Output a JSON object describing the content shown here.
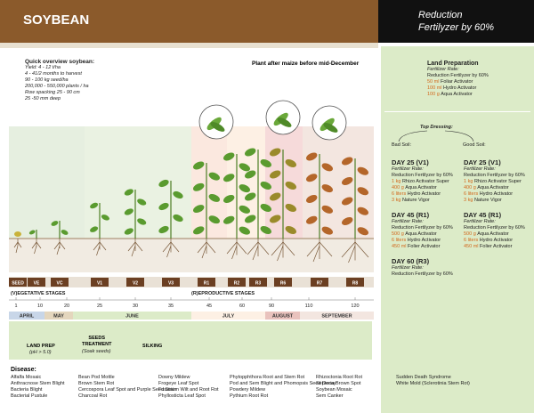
{
  "header": {
    "title": "SOYBEAN",
    "right_title": [
      "Reduction",
      "Fertilyzer by 60%"
    ]
  },
  "overview": {
    "heading": "Quick overview soybean:",
    "items": [
      "Yield: 4 - 12 t/ha",
      "4 - 41/2 months to harvest",
      "90 - 100 kg seed/ha",
      "200,000 - 550,000 plants / ha",
      "Row spacking 25 - 90 cm",
      "25 -50 mm deep"
    ]
  },
  "plant_note": "Plant after maize before mid-December",
  "land_preparation": {
    "title": "Land Preparation",
    "rate_label": "Fertilizer Rate:",
    "reduction": "Reduction Fertilyzer by 60%",
    "lines": [
      {
        "amount": "50 ml",
        "product": "Foliar Activator"
      },
      {
        "amount": "100 ml",
        "product": "Hydro Activator"
      },
      {
        "amount": "100 g",
        "product": "Aqua Activator"
      }
    ]
  },
  "top_dressing": {
    "title": "Top Dressing:",
    "bad_label": "Bad Soil:",
    "good_label": "Good Soil:",
    "bad": [
      {
        "day": "DAY 25 (V1)",
        "rate_label": "Fertilizer Rate:",
        "reduction": "Reduction Fertilyzer by 60%",
        "lines": [
          {
            "amount": "1 kg",
            "product": "Rhizo Activator Super"
          },
          {
            "amount": "400 g",
            "product": "Aqua Activator"
          },
          {
            "amount": "6 liters",
            "product": "Hydro Activator"
          },
          {
            "amount": "3 kg",
            "product": "Nature Vigor"
          }
        ]
      },
      {
        "day": "DAY 45 (R1)",
        "rate_label": "Fertilizer Rate:",
        "reduction": "Reduction Fertilyzer by 60%",
        "lines": [
          {
            "amount": "500 g",
            "product": "Aqua Activator"
          },
          {
            "amount": "6 liters",
            "product": "Hydro Activator"
          },
          {
            "amount": "450 ml",
            "product": "Folier Activator"
          }
        ]
      },
      {
        "day": "DAY 60 (R3)",
        "rate_label": "Fertilizer Rate:",
        "reduction": "Reduction Fertilyzer by 60%",
        "lines": []
      }
    ],
    "good": [
      {
        "day": "DAY 25 (V1)",
        "rate_label": "Fertilizer Rate:",
        "reduction": "Reduction Fertilyzer by 60%",
        "lines": [
          {
            "amount": "1 kg",
            "product": "Rhizo Activator Super"
          },
          {
            "amount": "400 g",
            "product": "Aqua Activator"
          },
          {
            "amount": "6 liters",
            "product": "Hydro Activator"
          },
          {
            "amount": "3 kg",
            "product": "Nature Vigor"
          }
        ]
      },
      {
        "day": "DAY 45 (R1)",
        "rate_label": "Fertilizer Rate:",
        "reduction": "Reduction Fertilyzer by 60%",
        "lines": [
          {
            "amount": "500 g",
            "product": "Aqua Activator"
          },
          {
            "amount": "6 liters",
            "product": "Hydro Activator"
          },
          {
            "amount": "450 ml",
            "product": "Folier Activator"
          }
        ]
      }
    ]
  },
  "stages": [
    "SEED",
    "VE",
    "VC",
    "V1",
    "V2",
    "V3",
    "R1",
    "R2",
    "R3",
    "R6",
    "R7",
    "R8"
  ],
  "stage_groups": [
    "(V)EGETATIVE STAGES",
    "(R)EPRODUCTIVE STAGES"
  ],
  "days": [
    "1",
    "10",
    "20",
    "25",
    "30",
    "35",
    "45",
    "60",
    "90",
    "110",
    "120"
  ],
  "months": [
    "APRIL",
    "MAY",
    "JUNE",
    "JULY",
    "AUGUST",
    "SEPTEMBER"
  ],
  "flow": {
    "land_prep": "LAND PREP",
    "land_prep_note": "(pH > 5.0)",
    "seeds": [
      "SEEDS",
      "TREATMENT"
    ],
    "seeds_note": "(Soak seeds)",
    "silking": "SILKING"
  },
  "diseases": {
    "heading": "Disease:",
    "columns": [
      [
        "Alfalfa Mosaic",
        "Anthracnose Stem Blight",
        "Bacteria Blight",
        "Bacterial Pustule"
      ],
      [
        "Bean Pod Mottle",
        "Brown Stem Rot",
        "Cercospora Leaf Spot and Purple Seed Stain",
        "Charcoal Rot"
      ],
      [
        "Downy Mildew",
        "Frogeye Leaf Spot",
        "Fusarium Wilt and Root Rot",
        "Phyllosticta Leaf Spot"
      ],
      [
        "Phytopphthora Root and Stem Rot",
        "Pod and Sem Blight and Phomopsis Seed Decay",
        "Powdery Mildew",
        "Pythium Root Rot"
      ],
      [
        "Rhizoctonia Root Rot",
        "Septoria Brown Spot",
        "Soybean Mosaic",
        "Sem Canker"
      ],
      [
        "Sudden Death Syndrome",
        "White Mold (Sclerotinia Stem Rot)"
      ]
    ]
  }
}
